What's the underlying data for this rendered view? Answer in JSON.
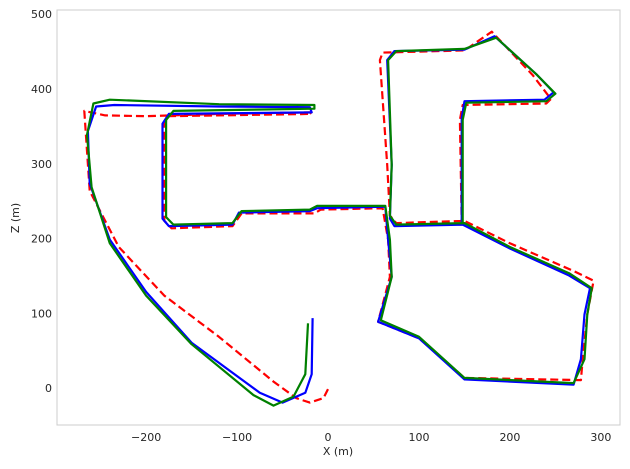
{
  "chart_data": {
    "type": "line",
    "xlabel": "X (m)",
    "ylabel": "Z (m)",
    "xlim": [
      -298,
      321
    ],
    "ylim": [
      -48,
      507
    ],
    "xticks": [
      {
        "value": -200,
        "label": "−200"
      },
      {
        "value": -100,
        "label": "−100"
      },
      0,
      100,
      200,
      300
    ],
    "yticks": [
      0,
      100,
      200,
      300,
      400,
      500
    ],
    "grid": false,
    "series": [
      {
        "color": "#ff0000",
        "linestyle": "dashed",
        "x": [
          0,
          -5,
          -20,
          -35,
          -60,
          -120,
          -180,
          -230,
          -262,
          -268,
          -245,
          -200,
          -120,
          -20,
          -18,
          -175,
          -180,
          -180,
          -172,
          -105,
          -95,
          -15,
          -8,
          60,
          66,
          68,
          55,
          100,
          150,
          278,
          280,
          285,
          292,
          270,
          200,
          150,
          75,
          68,
          65,
          57,
          60,
          150,
          180,
          225,
          245,
          240,
          148,
          145,
          147
        ],
        "values": [
          0,
          -12,
          -18,
          -12,
          10,
          70,
          125,
          190,
          265,
          372,
          366,
          365,
          368,
          370,
          368,
          365,
          355,
          225,
          215,
          218,
          235,
          235,
          240,
          242,
          200,
          150,
          90,
          68,
          15,
          12,
          40,
          100,
          145,
          158,
          195,
          225,
          222,
          232,
          300,
          440,
          450,
          453,
          478,
          420,
          388,
          382,
          380,
          360,
          222
        ]
      },
      {
        "color": "#0000ff",
        "linestyle": "solid",
        "x": [
          -17,
          -18,
          -25,
          -50,
          -75,
          -150,
          -200,
          -240,
          -262,
          -264,
          -255,
          -235,
          -120,
          -20,
          -18,
          -175,
          -182,
          -182,
          -175,
          -105,
          -98,
          -20,
          -12,
          63,
          66,
          70,
          55,
          100,
          150,
          270,
          278,
          282,
          288,
          265,
          200,
          148,
          73,
          68,
          70,
          65,
          73,
          150,
          183,
          230,
          248,
          238,
          150,
          147,
          147
        ],
        "values": [
          95,
          20,
          -5,
          -18,
          -5,
          62,
          130,
          200,
          275,
          345,
          378,
          380,
          378,
          377,
          370,
          368,
          355,
          228,
          218,
          220,
          236,
          238,
          242,
          244,
          200,
          150,
          90,
          68,
          13,
          6,
          40,
          100,
          135,
          152,
          188,
          220,
          218,
          228,
          300,
          440,
          452,
          454,
          472,
          420,
          397,
          387,
          385,
          362,
          222
        ]
      },
      {
        "color": "#008000",
        "linestyle": "solid",
        "x": [
          -22,
          -25,
          -38,
          -60,
          -82,
          -150,
          -200,
          -240,
          -260,
          -265,
          -258,
          -240,
          -120,
          -15,
          -15,
          -170,
          -178,
          -178,
          -170,
          -105,
          -95,
          -20,
          -12,
          63,
          68,
          70,
          58,
          100,
          150,
          270,
          282,
          285,
          290,
          265,
          200,
          150,
          75,
          68,
          70,
          66,
          75,
          150,
          185,
          230,
          250,
          240,
          152,
          148,
          148
        ],
        "values": [
          88,
          20,
          -10,
          -22,
          -8,
          60,
          125,
          195,
          270,
          340,
          382,
          387,
          381,
          380,
          375,
          372,
          360,
          230,
          220,
          222,
          238,
          240,
          245,
          245,
          200,
          150,
          92,
          70,
          15,
          8,
          40,
          100,
          135,
          155,
          190,
          222,
          220,
          232,
          300,
          440,
          452,
          455,
          470,
          420,
          395,
          385,
          383,
          360,
          222
        ]
      }
    ]
  }
}
